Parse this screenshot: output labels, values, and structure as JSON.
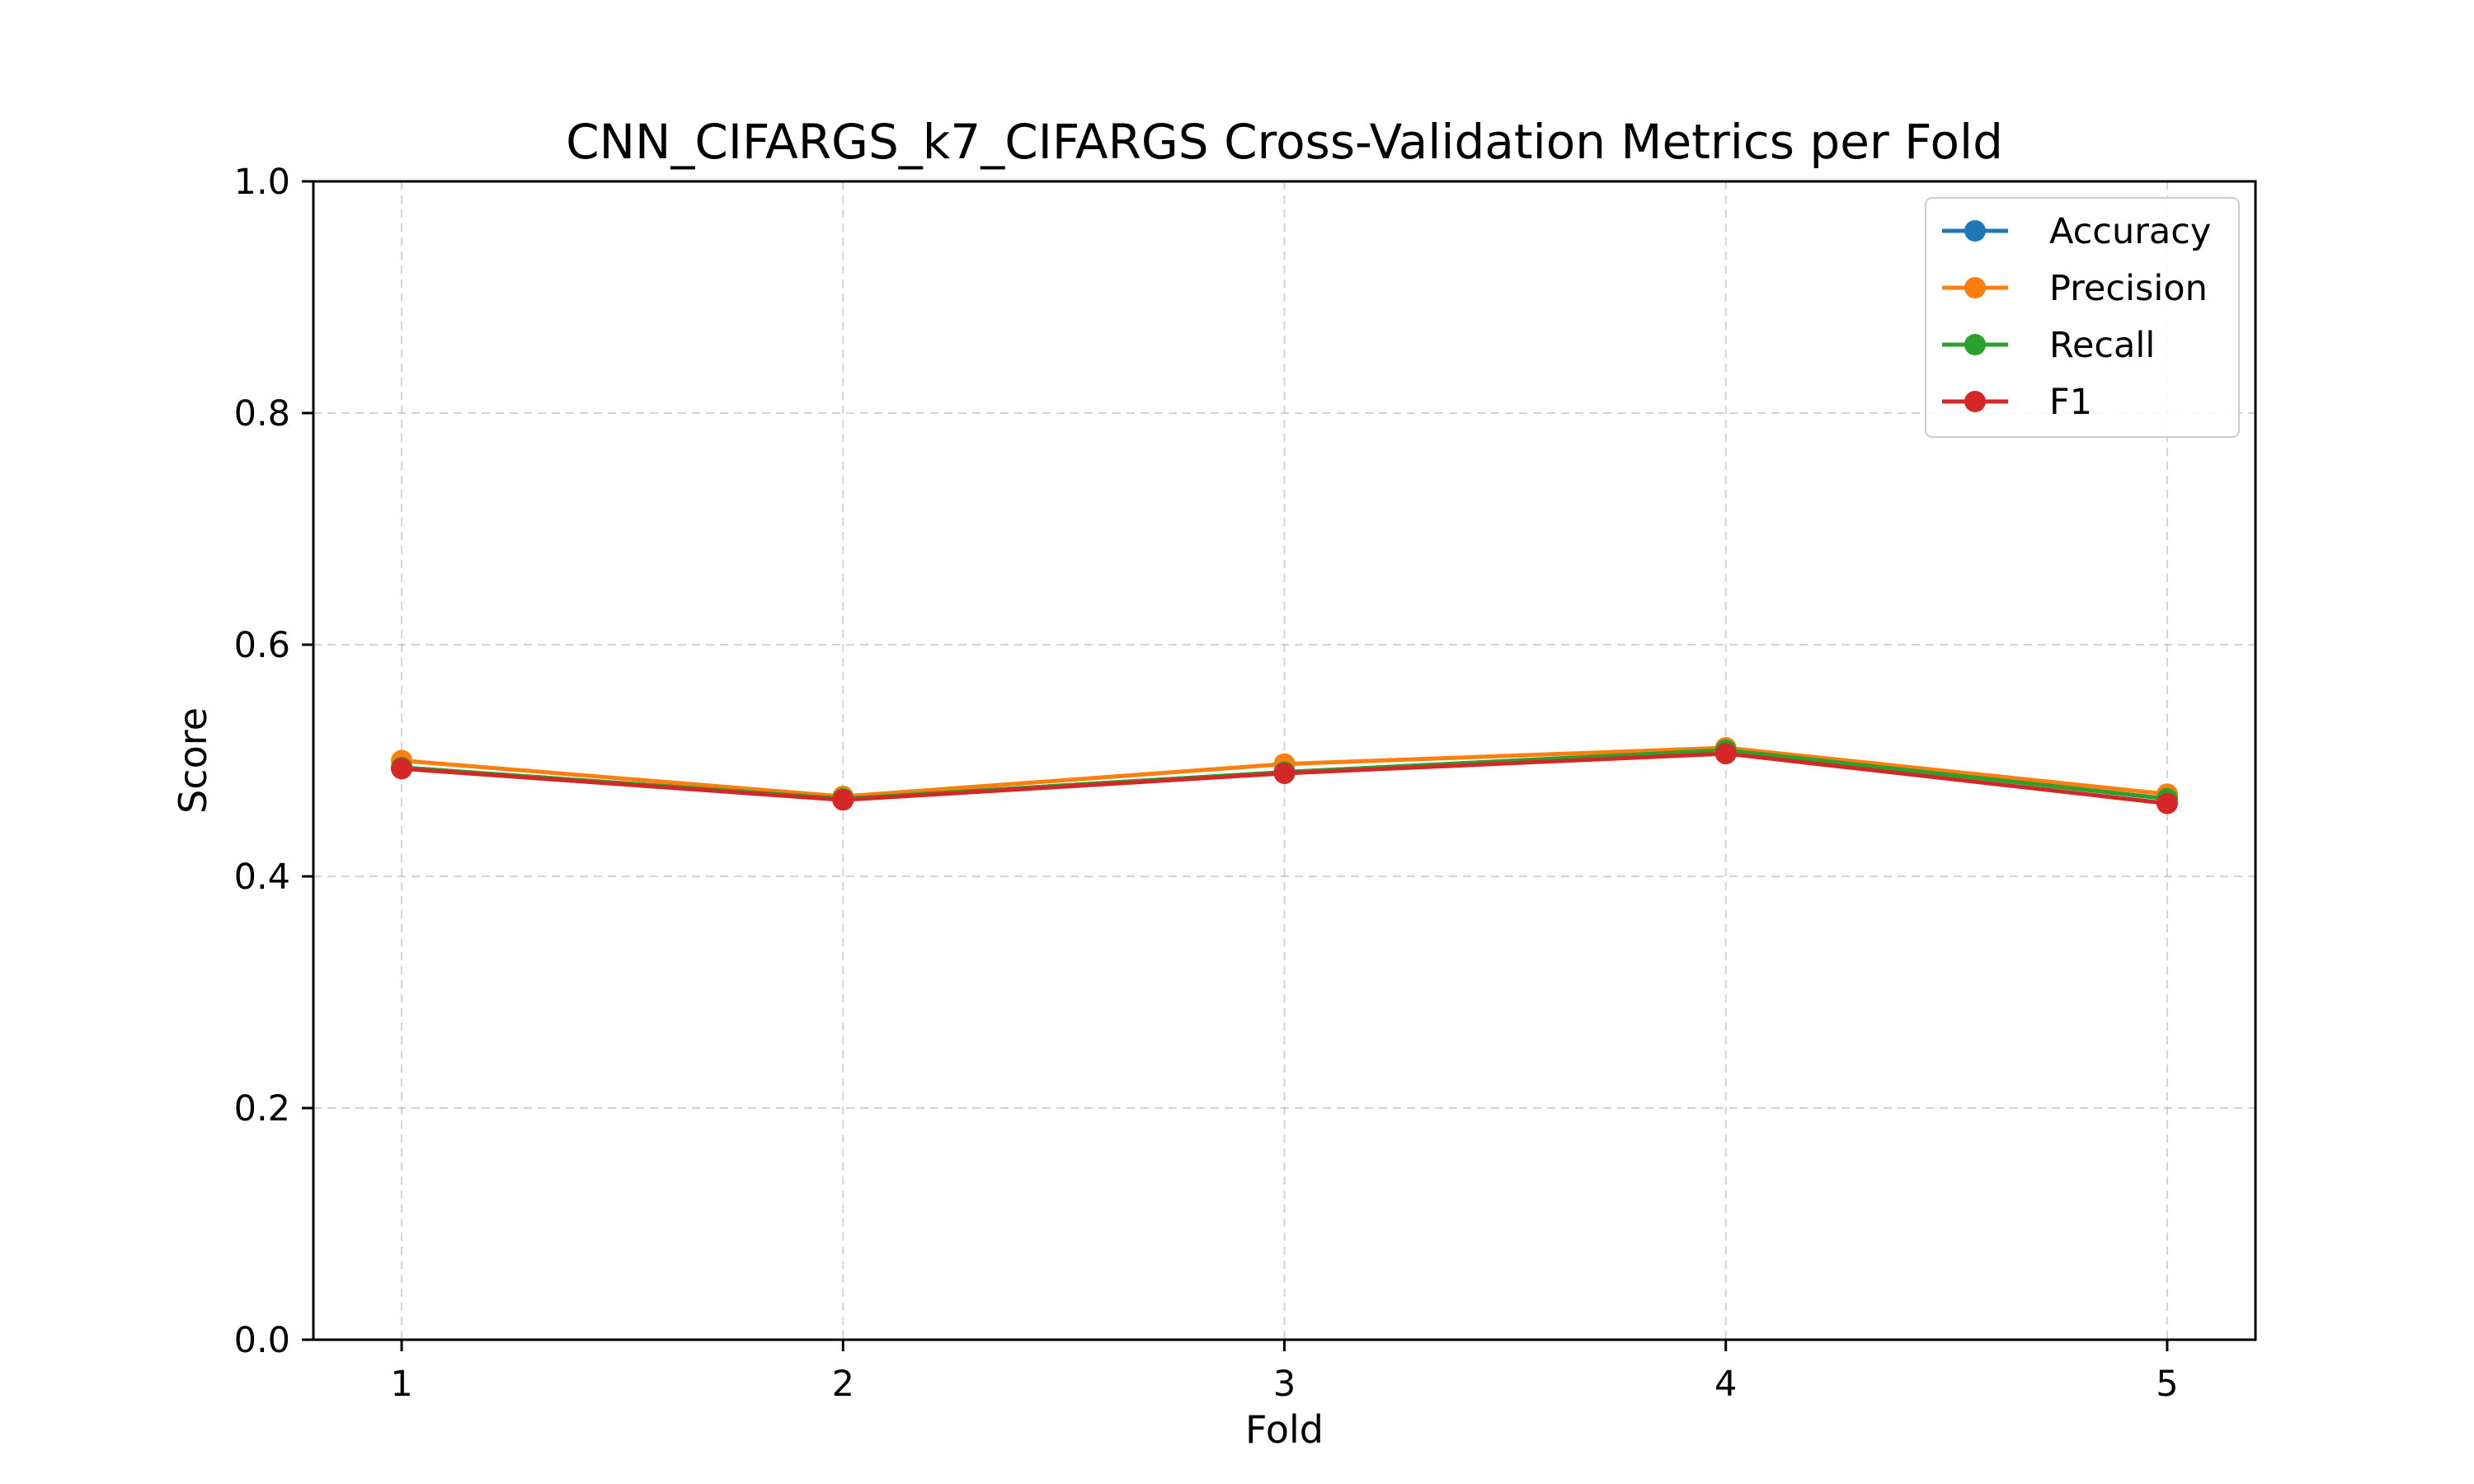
{
  "chart_data": {
    "type": "line",
    "title": "CNN_CIFARGS_k7_CIFARGS Cross-Validation Metrics per Fold",
    "xlabel": "Fold",
    "ylabel": "Score",
    "x": [
      1,
      2,
      3,
      4,
      5
    ],
    "xlim": [
      0.8,
      5.2
    ],
    "ylim": [
      0.0,
      1.0
    ],
    "xticks": [
      "1",
      "2",
      "3",
      "4",
      "5"
    ],
    "yticks": [
      "0.0",
      "0.2",
      "0.4",
      "0.6",
      "0.8",
      "1.0"
    ],
    "grid": true,
    "legend_position": "top-right",
    "series": [
      {
        "name": "Accuracy",
        "color": "#1f77b4",
        "values": [
          0.494,
          0.467,
          0.49,
          0.509,
          0.467
        ]
      },
      {
        "name": "Precision",
        "color": "#ff7f0e",
        "values": [
          0.5,
          0.469,
          0.497,
          0.511,
          0.471
        ]
      },
      {
        "name": "Recall",
        "color": "#2ca02c",
        "values": [
          0.494,
          0.467,
          0.49,
          0.509,
          0.467
        ]
      },
      {
        "name": "F1",
        "color": "#d62728",
        "values": [
          0.493,
          0.466,
          0.489,
          0.506,
          0.463
        ]
      }
    ]
  }
}
